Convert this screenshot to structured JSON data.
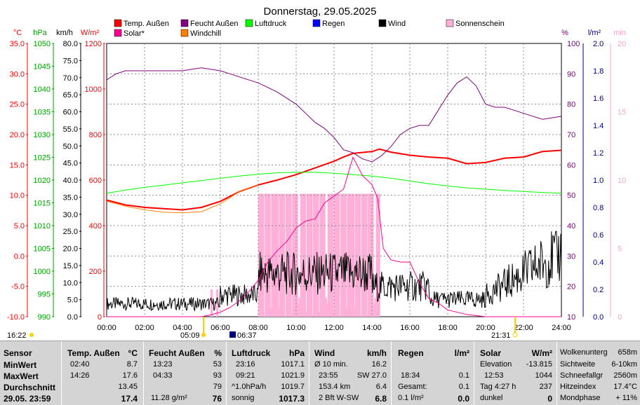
{
  "title": "Donnerstag, 29.05.2025",
  "legend": [
    {
      "label": "Temp. Außen",
      "color": "#ff0000"
    },
    {
      "label": "Feucht Außen",
      "color": "#800080"
    },
    {
      "label": "Luftdruck",
      "color": "#00ff00"
    },
    {
      "label": "Regen",
      "color": "#0000ff"
    },
    {
      "label": "Wind",
      "color": "#000000"
    },
    {
      "label": "Sonnenschein",
      "color": "#ffb0d8"
    },
    {
      "label": "Solar*",
      "color": "#ff0090"
    },
    {
      "label": "Windchill",
      "color": "#ff8000"
    }
  ],
  "axes": {
    "temp": {
      "unit": "°C",
      "ticks": [
        "35.0",
        "30.0",
        "25.0",
        "20.0",
        "15.0",
        "10.0",
        "5.0",
        "0.0",
        "-5.0",
        "-10.0"
      ],
      "color": "#ff0000"
    },
    "press": {
      "unit": "hPa",
      "ticks": [
        "1050",
        "1045",
        "1040",
        "1035",
        "1030",
        "1025",
        "1020",
        "1015",
        "1010",
        "1005",
        "1000",
        "995",
        "990"
      ],
      "color": "#00a000"
    },
    "wind": {
      "unit": "km/h",
      "ticks": [
        "80.0",
        "75.0",
        "70.0",
        "65.0",
        "60.0",
        "55.0",
        "50.0",
        "45.0",
        "40.0",
        "35.0",
        "30.0",
        "25.0",
        "20.0",
        "15.0",
        "10.0",
        "5.0",
        "0.0"
      ],
      "color": "#000000"
    },
    "solar": {
      "unit": "W/m²",
      "ticks": [
        "1200",
        "1000",
        "800",
        "600",
        "400",
        "200",
        "0"
      ],
      "color": "#ff0000"
    },
    "hum": {
      "unit": "%",
      "ticks": [
        "100",
        "90",
        "80",
        "70",
        "60",
        "50",
        "40",
        "30",
        "20",
        "10"
      ],
      "color": "#800080"
    },
    "rain": {
      "unit": "l/m²",
      "ticks": [
        "2.0",
        "1.8",
        "1.6",
        "1.4",
        "1.2",
        "1.0",
        "0.8",
        "0.6",
        "0.4",
        "0.2",
        "0.0"
      ],
      "color": "#000080"
    },
    "sun": {
      "unit": "min",
      "ticks": [
        "20",
        "15",
        "10",
        "5",
        "0"
      ],
      "color": "#ffb0d8"
    },
    "x_ticks": [
      "00:00",
      "02:00",
      "04:00",
      "06:00",
      "08:00",
      "10:00",
      "12:00",
      "14:00",
      "16:00",
      "18:00",
      "20:00",
      "22:00",
      "24:00"
    ]
  },
  "sun_marks": {
    "sunrise": "05:09",
    "sunset": "21:31",
    "moon": "06:37",
    "current": "16:22"
  },
  "chart_data": {
    "type": "line",
    "x_unit": "hours",
    "series": [
      {
        "name": "Temp. Außen",
        "axis": "temp",
        "x": [
          0,
          1,
          2,
          3,
          4,
          5,
          6,
          7,
          8,
          9,
          10,
          11,
          12,
          12.5,
          13,
          14,
          14.4,
          15,
          16,
          17,
          18,
          19,
          20,
          21,
          22,
          23,
          24
        ],
        "values": [
          9.2,
          8.4,
          8.0,
          7.8,
          7.6,
          8.0,
          9.0,
          10.6,
          11.7,
          12.5,
          13.4,
          14.5,
          15.6,
          16.3,
          16.9,
          17.2,
          17.6,
          17.1,
          16.6,
          16.3,
          16.1,
          15.2,
          15.4,
          16.1,
          16.3,
          17.2,
          17.4
        ]
      },
      {
        "name": "Windchill",
        "axis": "temp",
        "x": [
          0,
          1,
          2,
          3,
          4,
          5,
          6,
          7,
          8
        ],
        "values": [
          9.0,
          8.2,
          7.6,
          7.2,
          7.1,
          7.3,
          8.6,
          10.6,
          11.7
        ]
      },
      {
        "name": "Feucht Außen",
        "axis": "hum",
        "x": [
          0,
          0.5,
          1,
          2,
          3,
          4,
          5,
          6,
          6.5,
          7,
          8,
          9,
          10,
          10.5,
          11,
          11.5,
          12,
          12.5,
          13,
          13.5,
          14,
          14.5,
          15,
          15.5,
          16,
          16.5,
          17,
          17.5,
          18,
          18.5,
          19,
          19.5,
          20,
          20.5,
          21,
          21.5,
          22,
          23,
          24
        ],
        "values": [
          88,
          90,
          91,
          91,
          91,
          91,
          92,
          91,
          90,
          89,
          87,
          84,
          80,
          77,
          74,
          72,
          69,
          65,
          64,
          62,
          61,
          63,
          66,
          70,
          72,
          73,
          73,
          78,
          83,
          87,
          89,
          86,
          80,
          79,
          79,
          78,
          77,
          75,
          76
        ]
      },
      {
        "name": "Luftdruck",
        "axis": "press",
        "x": [
          0,
          1,
          2,
          3,
          4,
          5,
          6,
          7,
          8,
          9,
          10,
          11,
          12,
          13,
          14,
          15,
          16,
          17,
          18,
          19,
          20,
          21,
          22,
          23,
          24
        ],
        "values": [
          1017.1,
          1017.8,
          1018.4,
          1018.9,
          1019.4,
          1019.9,
          1020.4,
          1020.9,
          1021.3,
          1021.6,
          1021.7,
          1021.7,
          1021.5,
          1021.2,
          1020.9,
          1020.4,
          1019.8,
          1019.2,
          1018.7,
          1018.3,
          1018.0,
          1017.7,
          1017.5,
          1017.3,
          1017.1
        ]
      },
      {
        "name": "Solar*",
        "axis": "solar",
        "x": [
          0,
          5,
          5.5,
          6,
          6.5,
          7,
          7.5,
          8,
          8.5,
          9,
          9.5,
          10,
          10.5,
          11,
          11.5,
          12,
          12.5,
          13,
          13.5,
          14,
          14.3,
          14.6,
          15,
          15.5,
          16,
          16.5,
          17,
          17.5,
          18,
          19,
          20,
          21,
          22,
          24
        ],
        "values": [
          0,
          0,
          8,
          20,
          40,
          70,
          110,
          160,
          240,
          290,
          330,
          390,
          420,
          430,
          500,
          530,
          560,
          700,
          620,
          580,
          520,
          300,
          250,
          240,
          240,
          150,
          80,
          60,
          30,
          10,
          0,
          0,
          0,
          0
        ]
      }
    ],
    "wind_bars": {
      "x_start": 0,
      "x_end": 24
    },
    "sunshine_min": {
      "start": 8.0,
      "end": 14.3,
      "max": 9
    }
  },
  "table": {
    "sensor": {
      "header": "Sensor",
      "rows": [
        "MinWert",
        "MaxWert",
        "Durchschnitt"
      ],
      "footer": "29.05. 23:59"
    },
    "temp": {
      "header": "Temp. Außen",
      "unit": "°C",
      "min_time": "02:40",
      "min_val": "8.7",
      "max_time": "14:26",
      "max_val": "17.6",
      "avg": "13.45",
      "cur": "17.4"
    },
    "hum": {
      "header": "Feucht Außen",
      "unit": "%",
      "min_time": "13:23",
      "min_val": "53",
      "max_time": "04:33",
      "max_val": "93",
      "avg": "79",
      "foot_label": "11.28 g/m²",
      "cur": "76"
    },
    "press": {
      "header": "Luftdruck",
      "unit": "hPa",
      "min_time": "23:16",
      "min_val": "1017.1",
      "max_time": "09:21",
      "max_val": "1021.9",
      "avg_label": "^1.0hPa/h",
      "avg": "1019.7",
      "foot_label": "sonnig",
      "cur": "1017.3"
    },
    "wind": {
      "header": "Wind",
      "unit": "km/h",
      "r1_label": "Ø 10 min.",
      "r1_val": "16.2",
      "r2_time": "23:55",
      "r2_val": "SW 27.0",
      "r3_label": "153.4 km",
      "r3_val": "6.4",
      "foot_label": "2 Bft W-SW",
      "cur": "6.8"
    },
    "rain": {
      "header": "Regen",
      "unit": "l/m²",
      "r2_time": "18:34",
      "r2_val": "0.1",
      "r3_label": "Gesamt:",
      "r3_val": "0.1",
      "foot_label": "0.1 l/m²",
      "cur": "0.0"
    },
    "solar": {
      "header": "Solar",
      "unit": "W/m²",
      "r1_label": "Elevation",
      "r1_val": "-13.815",
      "r2_time": "12:53",
      "r2_val": "1044",
      "r3_label": "Tag 4:27 h",
      "r3_val": "237",
      "foot_label": "dunkel",
      "cur": "0"
    },
    "extra": {
      "rows": [
        {
          "label": "Wolkenunterg",
          "value": "658m"
        },
        {
          "label": "Sichtweite",
          "value": "6-10km"
        },
        {
          "label": "Schneefallgr",
          "value": "2560m"
        },
        {
          "label": "Hitzeindex",
          "value": "17.4°C"
        },
        {
          "label": "Mondphase",
          "value": "+ 11%"
        }
      ]
    }
  }
}
